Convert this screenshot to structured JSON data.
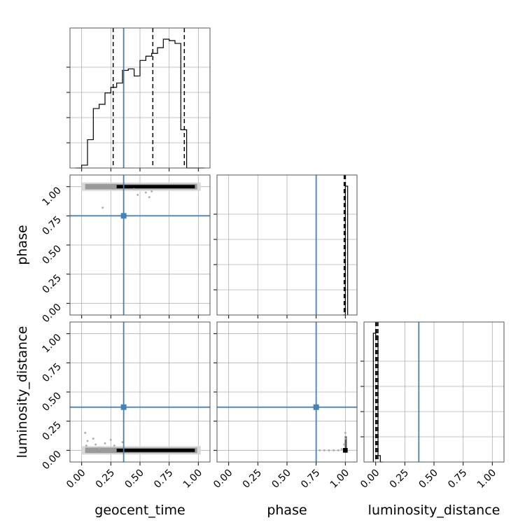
{
  "chart_data": {
    "type": "corner",
    "parameters": [
      "geocent_time",
      "phase",
      "luminosity_distance"
    ],
    "axis_range": [
      -0.1,
      1.1
    ],
    "tick_values": [
      0.0,
      0.25,
      0.5,
      0.75,
      1.0
    ],
    "tick_labels": [
      "0.00",
      "0.25",
      "0.50",
      "0.75",
      "1.00"
    ],
    "grid": true,
    "truth_values": {
      "geocent_time": 0.36,
      "phase": 0.75,
      "luminosity_distance": 0.37
    },
    "quantile_lines": {
      "geocent_time": [
        0.27,
        0.61,
        0.88
      ],
      "phase": [
        0.99,
        1.0,
        1.0
      ],
      "luminosity_distance": [
        0.0,
        0.01,
        0.02
      ]
    },
    "histograms": {
      "geocent_time": {
        "bin_edges": [
          -0.05,
          0.0,
          0.05,
          0.1,
          0.15,
          0.2,
          0.25,
          0.3,
          0.35,
          0.4,
          0.45,
          0.5,
          0.55,
          0.6,
          0.65,
          0.7,
          0.75,
          0.8,
          0.85,
          0.9,
          0.95,
          1.0,
          1.05
        ],
        "counts": [
          0.0,
          0.02,
          0.2,
          0.42,
          0.45,
          0.53,
          0.57,
          0.6,
          0.69,
          0.7,
          0.65,
          0.76,
          0.79,
          0.81,
          0.85,
          0.91,
          0.9,
          0.88,
          0.27,
          0.0,
          0.0,
          0.0
        ]
      },
      "phase": {
        "bin_edges": [
          0.98,
          1.0,
          1.02
        ],
        "counts": [
          0.0,
          1.0
        ]
      },
      "luminosity_distance": {
        "bin_edges": [
          -0.02,
          0.0,
          0.02,
          0.04,
          0.06
        ],
        "counts": [
          1.0,
          0.98,
          0.05,
          0.0
        ]
      }
    },
    "scatter_panels": [
      {
        "x": "geocent_time",
        "y": "phase",
        "sample_points": [
          [
            0.18,
            0.82
          ],
          [
            0.48,
            0.93
          ],
          [
            0.55,
            0.95
          ],
          [
            0.58,
            0.91
          ],
          [
            0.6,
            0.96
          ],
          [
            0.45,
            0.98
          ]
        ]
      },
      {
        "x": "geocent_time",
        "y": "luminosity_distance",
        "sample_points": [
          [
            0.03,
            0.15
          ],
          [
            0.05,
            0.08
          ],
          [
            0.12,
            0.05
          ],
          [
            0.2,
            0.06
          ],
          [
            0.28,
            0.04
          ],
          [
            0.35,
            0.07
          ],
          [
            0.1,
            0.1
          ],
          [
            0.04,
            0.04
          ],
          [
            0.15,
            0.02
          ],
          [
            0.25,
            0.09
          ]
        ]
      },
      {
        "x": "phase",
        "y": "luminosity_distance",
        "sample_points": [
          [
            0.78,
            0.0
          ],
          [
            0.82,
            0.0
          ],
          [
            0.86,
            0.0
          ],
          [
            0.9,
            0.0
          ],
          [
            0.94,
            0.0
          ],
          [
            0.97,
            0.01
          ],
          [
            0.99,
            0.05
          ],
          [
            1.0,
            0.1
          ],
          [
            1.0,
            0.15
          ]
        ]
      }
    ]
  }
}
